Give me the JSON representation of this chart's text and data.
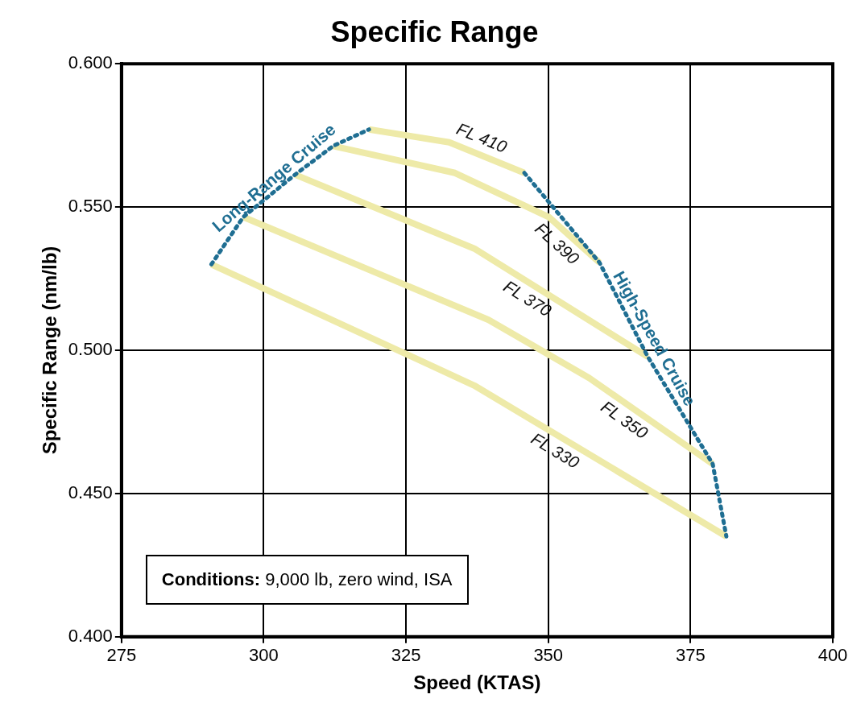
{
  "chart_data": {
    "type": "line",
    "title": "Specific Range",
    "xlabel": "Speed (KTAS)",
    "ylabel": "Specific Range (nm/lb)",
    "series": [
      {
        "name": "Long-Range Cruise",
        "color": "#1f6e92",
        "line_style": "dotted",
        "x": [
          290.8,
          296.4,
          305.5,
          312.2,
          318.5
        ],
        "values": [
          0.53,
          0.5465,
          0.5613,
          0.5713,
          0.5771
        ]
      },
      {
        "name": "High-Speed Cruise",
        "color": "#1f6e92",
        "line_style": "dotted",
        "x": [
          345.8,
          359.0,
          367.5,
          378.9,
          381.3
        ],
        "values": [
          0.5619,
          0.5306,
          0.4977,
          0.4603,
          0.435
        ]
      },
      {
        "name": "FL 410",
        "color": "#eeeaa8",
        "x": [
          318.5,
          332.6,
          345.8
        ],
        "values": [
          0.5771,
          0.5726,
          0.5619
        ]
      },
      {
        "name": "FL 390",
        "color": "#eeeaa8",
        "x": [
          312.2,
          333.6,
          350.1,
          359.0
        ],
        "values": [
          0.5713,
          0.5619,
          0.5465,
          0.5306
        ]
      },
      {
        "name": "FL 370",
        "color": "#eeeaa8",
        "x": [
          305.5,
          337.0,
          367.5
        ],
        "values": [
          0.5613,
          0.5355,
          0.4977
        ]
      },
      {
        "name": "FL 350",
        "color": "#eeeaa8",
        "x": [
          296.4,
          339.5,
          357.2,
          378.9
        ],
        "values": [
          0.5465,
          0.5106,
          0.4903,
          0.4603
        ]
      },
      {
        "name": "FL 330",
        "color": "#eeeaa8",
        "x": [
          290.8,
          337.0,
          381.3
        ],
        "values": [
          0.53,
          0.4877,
          0.435
        ]
      }
    ],
    "xlim": [
      275,
      400
    ],
    "xticks": [
      275,
      300,
      325,
      350,
      375,
      400
    ],
    "ylim": [
      0.4,
      0.6
    ],
    "yticks": [
      {
        "value": 0.4,
        "label": "0.400"
      },
      {
        "value": 0.45,
        "label": "0.450"
      },
      {
        "value": 0.5,
        "label": "0.500"
      },
      {
        "value": 0.55,
        "label": "0.550"
      },
      {
        "value": 0.6,
        "label": "0.600"
      }
    ],
    "grid": true,
    "legend": false,
    "marker": "none",
    "line_style": "solid",
    "annotations": [
      "Conditions: 9,000 lb, zero wind, ISA"
    ]
  }
}
